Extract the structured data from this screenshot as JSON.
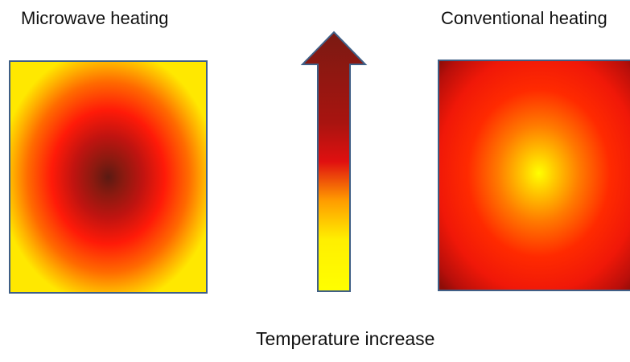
{
  "labels": {
    "microwave_title": "Microwave heating",
    "conventional_title": "Conventional heating",
    "temperature_caption": "Temperature  increase"
  },
  "colors": {
    "hot": "#7a1a12",
    "red": "#ff1a08",
    "orange": "#ff8c00",
    "cool": "#ffff00",
    "border": "#3f5f86"
  }
}
